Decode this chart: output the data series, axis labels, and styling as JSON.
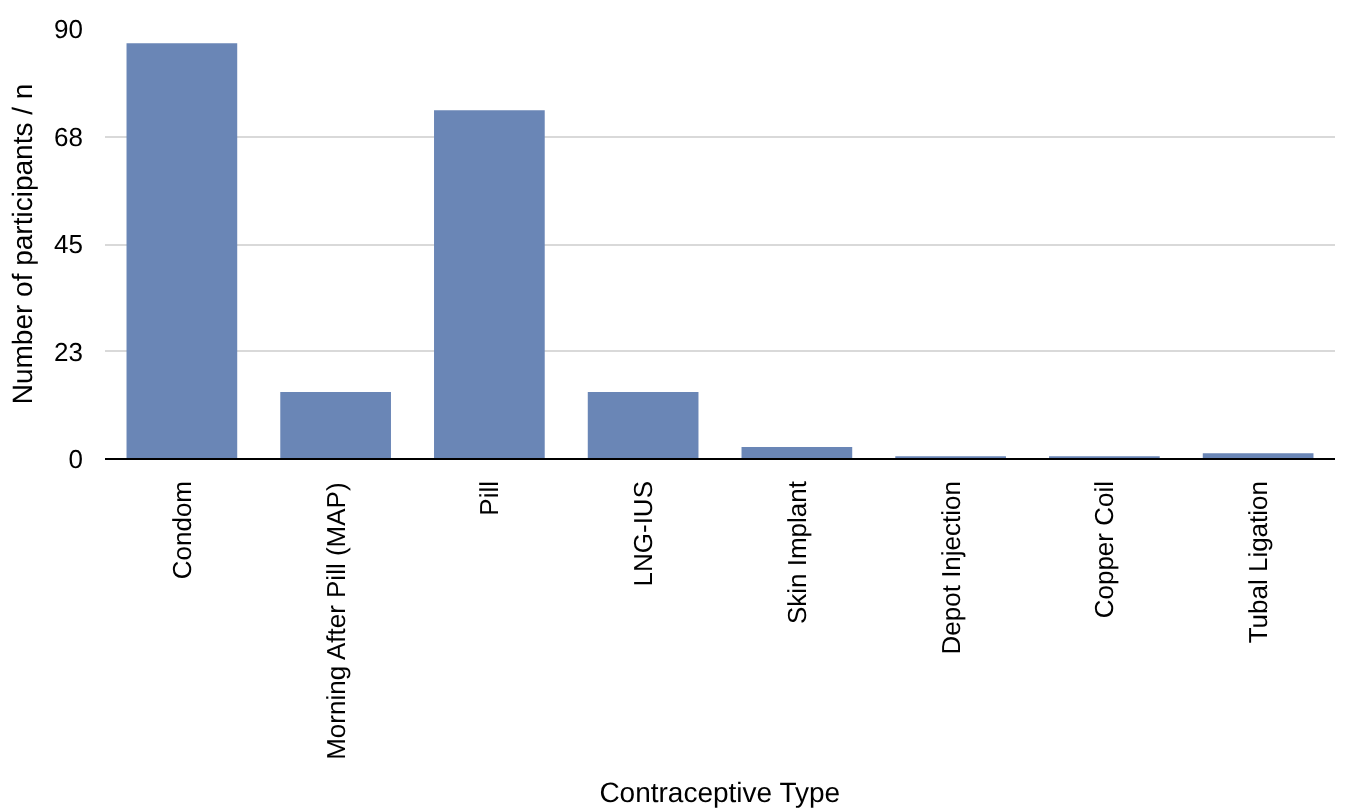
{
  "chart_data": {
    "type": "bar",
    "xlabel": "Contraceptive Type",
    "ylabel": "Number of participants / n",
    "categories": [
      "Condom",
      "Morning After Pill (MAP)",
      "Pill",
      "LNG-IUS",
      "Skin Implant",
      "Depot Injection",
      "Copper Coil",
      "Tubal Ligation"
    ],
    "values": [
      87,
      14,
      73,
      14,
      2.5,
      0.6,
      0.6,
      1.2
    ],
    "color": "#6a86b6",
    "ylim": [
      0,
      90
    ],
    "yticks": [
      0,
      {
        "value": 22.5,
        "label": "23"
      },
      45,
      {
        "value": 67.5,
        "label": "68"
      },
      90
    ],
    "grid": "y"
  }
}
